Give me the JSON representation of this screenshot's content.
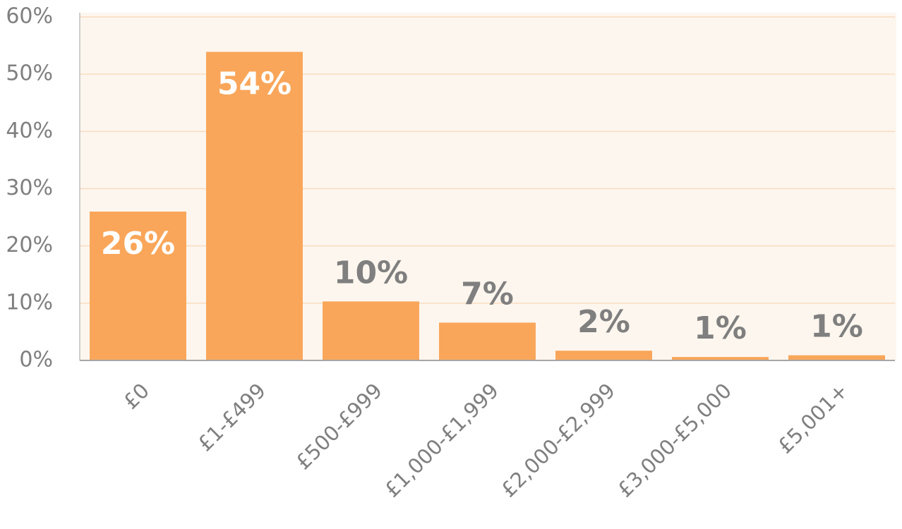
{
  "chart_data": {
    "type": "bar",
    "categories": [
      "£0",
      "£1-£499",
      "£500-£999",
      "£1,000-£1,999",
      "£2,000-£2,999",
      "£3,000-£5,000",
      "£5,001+"
    ],
    "values": [
      26,
      53.9,
      10.3,
      6.6,
      1.7,
      0.6,
      0.9
    ],
    "value_labels": [
      "26%",
      "54%",
      "10%",
      "7%",
      "2%",
      "1%",
      "1%"
    ],
    "color": "#f9a65a",
    "ylim": [
      0,
      60
    ],
    "yticks": [
      {
        "value": 0,
        "label": "0%"
      },
      {
        "value": 10,
        "label": "10%"
      },
      {
        "value": 20,
        "label": "20%"
      },
      {
        "value": 30,
        "label": "30%"
      },
      {
        "value": 40,
        "label": "40%"
      },
      {
        "value": 50,
        "label": "50%"
      },
      {
        "value": 60,
        "label": "60%"
      }
    ],
    "grid": true
  }
}
